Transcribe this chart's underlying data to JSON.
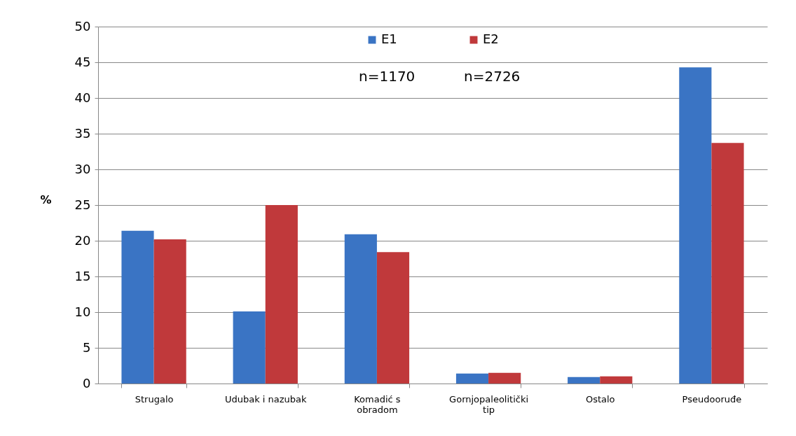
{
  "chart_data": {
    "type": "bar",
    "ylabel": "%",
    "categories": [
      "Strugalo",
      "Udubak i nazubak",
      "Komadić s obradom",
      "Gornjopaleolitički tip",
      "Ostalo",
      "Pseudooruđe"
    ],
    "series": [
      {
        "name": "E1",
        "color": "#3a74c4",
        "values": [
          21.4,
          10.1,
          20.9,
          1.4,
          0.9,
          44.3
        ]
      },
      {
        "name": "E2",
        "color": "#c0393b",
        "values": [
          20.2,
          25.0,
          18.4,
          1.5,
          1.0,
          33.7
        ]
      }
    ],
    "annotations": [
      "n=1170",
      "n=2726"
    ],
    "ylim": [
      0,
      50
    ],
    "yticks": [
      0,
      5,
      10,
      15,
      20,
      25,
      30,
      35,
      40,
      45,
      50
    ],
    "grid": "y",
    "legend": "top"
  }
}
